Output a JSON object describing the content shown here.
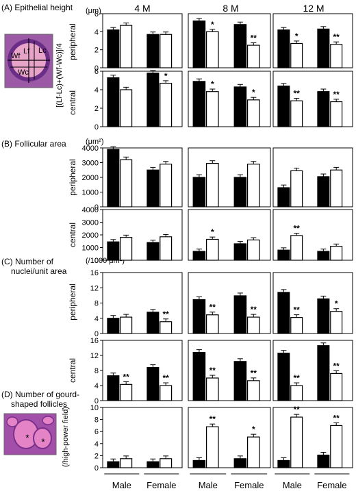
{
  "columns": [
    "4 M",
    "8 M",
    "12 M"
  ],
  "x_groups": [
    "Male",
    "Female",
    "Male",
    "Female",
    "Male",
    "Female"
  ],
  "sections": [
    {
      "label": "(A) Epithelial height",
      "unit": "(μm)",
      "ylabel": "[(Lf-Lc)+(Wf-Wc)]/4",
      "lines": []
    },
    {
      "label": "(B) Follicular area",
      "unit": "(μm²)",
      "ylabel": "",
      "lines": []
    },
    {
      "label": "",
      "unit": "(/1000  μm²)",
      "ylabel": "",
      "lines": [
        "(C) Number of",
        "nuclei/unit area"
      ]
    },
    {
      "label": "",
      "unit": "",
      "ylabel": "(/high-power field)",
      "lines": [
        "(D) Number of gourd-",
        "shaped follicles"
      ]
    }
  ],
  "thumb_a": {
    "labels": [
      "Lf",
      "Lc",
      "Wf",
      "Wc"
    ],
    "colors": {
      "tissue": "#9c5aa6",
      "colloid": "#e8a3c9",
      "cell": "#6a2e87"
    }
  },
  "thumb_d": {
    "labels": [
      "*",
      "*"
    ],
    "colors": {
      "tissue": "#a24fa9",
      "colloid": "#e583c7"
    }
  },
  "chart_data": {
    "type": "bar",
    "series": [
      {
        "name": "",
        "color": "#000000"
      },
      {
        "name": "",
        "color": "#ffffff"
      }
    ],
    "panels": [
      {
        "row": "A",
        "region": "peripheral",
        "ylim": [
          0,
          6
        ],
        "ticks": [
          0,
          2,
          4,
          6
        ],
        "pairs": [
          [
            4.2,
            4.7,
            ""
          ],
          [
            3.7,
            3.7,
            ""
          ],
          [
            5.2,
            4.0,
            "*"
          ],
          [
            4.8,
            2.5,
            "**"
          ],
          [
            4.2,
            2.7,
            "*"
          ],
          [
            4.3,
            2.6,
            "**"
          ]
        ]
      },
      {
        "row": "A",
        "region": "central",
        "ylim": [
          0,
          6
        ],
        "ticks": [
          0,
          2,
          4,
          6
        ],
        "pairs": [
          [
            5.3,
            4.0,
            ""
          ],
          [
            5.8,
            4.7,
            "*"
          ],
          [
            4.9,
            3.8,
            "*"
          ],
          [
            4.3,
            2.9,
            "*"
          ],
          [
            4.4,
            2.8,
            "**"
          ],
          [
            3.8,
            2.7,
            "**"
          ]
        ]
      },
      {
        "row": "B",
        "region": "peripheral",
        "ylim": [
          0,
          4000
        ],
        "ticks": [
          0,
          1000,
          2000,
          3000,
          4000
        ],
        "pairs": [
          [
            3900,
            3200,
            ""
          ],
          [
            2500,
            2900,
            ""
          ],
          [
            2000,
            2950,
            ""
          ],
          [
            2000,
            2900,
            ""
          ],
          [
            1300,
            2450,
            ""
          ],
          [
            2050,
            2500,
            ""
          ]
        ]
      },
      {
        "row": "B",
        "region": "central",
        "ylim": [
          0,
          4000
        ],
        "ticks": [
          0,
          1000,
          2000,
          3000,
          4000
        ],
        "pairs": [
          [
            1450,
            1800,
            ""
          ],
          [
            1400,
            1850,
            ""
          ],
          [
            700,
            1650,
            "*"
          ],
          [
            1300,
            1600,
            ""
          ],
          [
            800,
            1950,
            "**"
          ],
          [
            700,
            1100,
            ""
          ]
        ]
      },
      {
        "row": "C",
        "region": "peripheral",
        "ylim": [
          0,
          16
        ],
        "ticks": [
          0,
          4,
          8,
          12,
          16
        ],
        "pairs": [
          [
            4.0,
            4.3,
            ""
          ],
          [
            5.6,
            3.1,
            "**"
          ],
          [
            8.9,
            4.9,
            "**"
          ],
          [
            9.9,
            4.3,
            "**"
          ],
          [
            10.8,
            4.2,
            "**"
          ],
          [
            9.1,
            5.8,
            "*"
          ]
        ]
      },
      {
        "row": "C",
        "region": "central",
        "ylim": [
          0,
          16
        ],
        "ticks": [
          0,
          4,
          8,
          12,
          16
        ],
        "pairs": [
          [
            6.6,
            4.3,
            "**"
          ],
          [
            8.8,
            4.0,
            "**"
          ],
          [
            12.8,
            6.0,
            "**"
          ],
          [
            10.4,
            5.3,
            "**"
          ],
          [
            12.6,
            4.0,
            "**"
          ],
          [
            14.6,
            7.2,
            "**"
          ]
        ]
      },
      {
        "row": "D",
        "region": "",
        "ylim": [
          0,
          10
        ],
        "ticks": [
          0,
          2,
          4,
          6,
          8,
          10
        ],
        "pairs": [
          [
            1.0,
            1.5,
            ""
          ],
          [
            1.0,
            1.5,
            ""
          ],
          [
            1.2,
            6.8,
            "**"
          ],
          [
            1.5,
            5.1,
            "*"
          ],
          [
            1.2,
            8.4,
            "**"
          ],
          [
            2.1,
            7.0,
            "**"
          ]
        ]
      }
    ]
  }
}
